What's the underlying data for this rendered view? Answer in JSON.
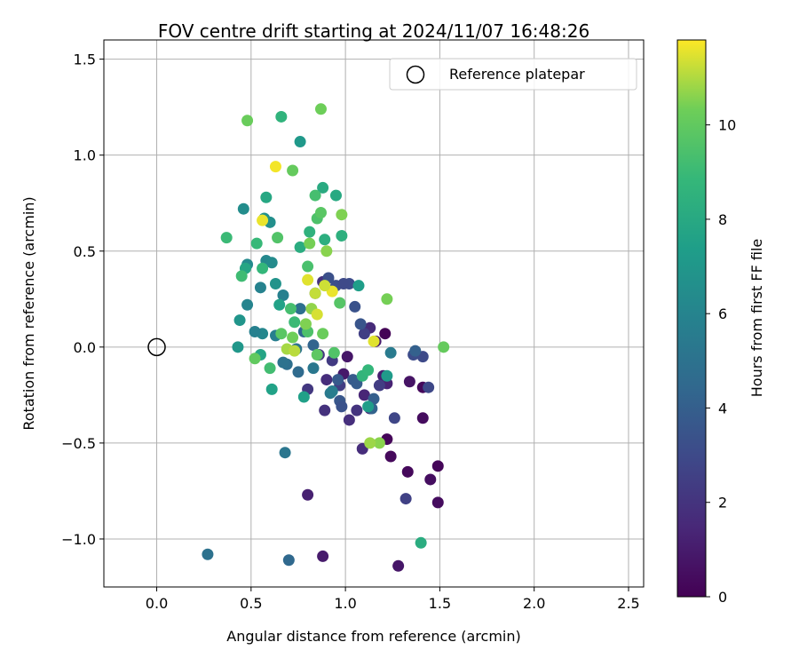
{
  "chart_data": {
    "type": "scatter",
    "title": "FOV centre drift starting at 2024/11/07 16:48:26",
    "xlabel": "Angular distance from reference (arcmin)",
    "ylabel": "Rotation from reference (arcmin)",
    "xlim": [
      -0.28,
      2.58
    ],
    "ylim": [
      -1.25,
      1.6
    ],
    "xticks": [
      0.0,
      0.5,
      1.0,
      1.5,
      2.0,
      2.5
    ],
    "xtick_labels": [
      "0.0",
      "0.5",
      "1.0",
      "1.5",
      "2.0",
      "2.5"
    ],
    "yticks": [
      1.5,
      1.0,
      0.5,
      0.0,
      -0.5,
      -1.0
    ],
    "ytick_labels": [
      "1.5",
      "1.0",
      "0.5",
      "0.0",
      "−0.5",
      "−1.0"
    ],
    "grid": true,
    "legend": {
      "location": "top-right",
      "entries": [
        {
          "label": "Reference platepar",
          "marker": "open-circle",
          "x": 0.0,
          "y": 0.0
        }
      ]
    },
    "colorbar": {
      "label": "Hours from first FF file",
      "colormap": "viridis",
      "range": [
        0,
        11.8
      ],
      "ticks": [
        0,
        2,
        4,
        6,
        8,
        10
      ],
      "tick_labels": [
        "0",
        "2",
        "4",
        "6",
        "8",
        "10"
      ]
    },
    "points": [
      {
        "x": 1.21,
        "y": 0.07,
        "t": 0.1
      },
      {
        "x": 1.22,
        "y": -0.48,
        "t": 0.2
      },
      {
        "x": 1.24,
        "y": -0.57,
        "t": 0.3
      },
      {
        "x": 1.49,
        "y": -0.62,
        "t": 0.2
      },
      {
        "x": 1.49,
        "y": -0.81,
        "t": 0.4
      },
      {
        "x": 1.33,
        "y": -0.65,
        "t": 0.3
      },
      {
        "x": 1.45,
        "y": -0.69,
        "t": 0.5
      },
      {
        "x": 1.41,
        "y": -0.21,
        "t": 0.3
      },
      {
        "x": 1.41,
        "y": -0.37,
        "t": 0.4
      },
      {
        "x": 1.28,
        "y": -1.14,
        "t": 0.8
      },
      {
        "x": 0.88,
        "y": -1.09,
        "t": 1.0
      },
      {
        "x": 0.8,
        "y": -0.77,
        "t": 1.2
      },
      {
        "x": 1.34,
        "y": -0.18,
        "t": 0.7
      },
      {
        "x": 1.01,
        "y": -0.05,
        "t": 0.8
      },
      {
        "x": 0.99,
        "y": -0.14,
        "t": 0.9
      },
      {
        "x": 1.2,
        "y": -0.15,
        "t": 1.1
      },
      {
        "x": 1.22,
        "y": -0.19,
        "t": 1.3
      },
      {
        "x": 1.1,
        "y": -0.25,
        "t": 1.4
      },
      {
        "x": 1.16,
        "y": 0.03,
        "t": 1.0
      },
      {
        "x": 1.13,
        "y": 0.1,
        "t": 1.6
      },
      {
        "x": 1.09,
        "y": -0.53,
        "t": 1.7
      },
      {
        "x": 1.13,
        "y": -0.32,
        "t": 1.5
      },
      {
        "x": 1.02,
        "y": -0.38,
        "t": 1.8
      },
      {
        "x": 1.06,
        "y": -0.33,
        "t": 2.0
      },
      {
        "x": 0.89,
        "y": -0.33,
        "t": 1.9
      },
      {
        "x": 0.9,
        "y": -0.17,
        "t": 1.7
      },
      {
        "x": 0.86,
        "y": -0.04,
        "t": 2.1
      },
      {
        "x": 0.8,
        "y": -0.22,
        "t": 2.2
      },
      {
        "x": 0.93,
        "y": -0.07,
        "t": 2.3
      },
      {
        "x": 0.97,
        "y": -0.2,
        "t": 2.4
      },
      {
        "x": 0.88,
        "y": 0.34,
        "t": 1.9
      },
      {
        "x": 1.1,
        "y": 0.07,
        "t": 2.5
      },
      {
        "x": 1.18,
        "y": -0.2,
        "t": 2.4
      },
      {
        "x": 1.26,
        "y": -0.37,
        "t": 2.8
      },
      {
        "x": 1.32,
        "y": -0.79,
        "t": 2.6
      },
      {
        "x": 1.44,
        "y": -0.21,
        "t": 2.9
      },
      {
        "x": 1.41,
        "y": -0.05,
        "t": 3.0
      },
      {
        "x": 1.36,
        "y": -0.04,
        "t": 3.1
      },
      {
        "x": 0.95,
        "y": 0.32,
        "t": 3.2
      },
      {
        "x": 1.02,
        "y": 0.33,
        "t": 3.1
      },
      {
        "x": 0.91,
        "y": 0.36,
        "t": 3.3
      },
      {
        "x": 0.99,
        "y": 0.33,
        "t": 3.0
      },
      {
        "x": 1.05,
        "y": 0.21,
        "t": 3.4
      },
      {
        "x": 1.08,
        "y": 0.12,
        "t": 3.5
      },
      {
        "x": 0.84,
        "y": 0.28,
        "t": 3.6
      },
      {
        "x": 0.96,
        "y": -0.17,
        "t": 3.7
      },
      {
        "x": 0.97,
        "y": -0.28,
        "t": 3.6
      },
      {
        "x": 0.98,
        "y": -0.31,
        "t": 3.4
      },
      {
        "x": 1.04,
        "y": -0.17,
        "t": 3.8
      },
      {
        "x": 1.06,
        "y": -0.19,
        "t": 3.9
      },
      {
        "x": 1.15,
        "y": -0.27,
        "t": 4.0
      },
      {
        "x": 1.14,
        "y": -0.32,
        "t": 4.2
      },
      {
        "x": 1.37,
        "y": -0.02,
        "t": 4.1
      },
      {
        "x": 0.83,
        "y": 0.01,
        "t": 4.3
      },
      {
        "x": 0.78,
        "y": 0.08,
        "t": 4.4
      },
      {
        "x": 0.75,
        "y": -0.13,
        "t": 4.6
      },
      {
        "x": 0.69,
        "y": -0.09,
        "t": 4.8
      },
      {
        "x": 0.67,
        "y": -0.08,
        "t": 5.0
      },
      {
        "x": 0.76,
        "y": 0.2,
        "t": 4.9
      },
      {
        "x": 0.74,
        "y": -0.01,
        "t": 5.1
      },
      {
        "x": 0.68,
        "y": -0.55,
        "t": 5.2
      },
      {
        "x": 0.7,
        "y": -1.11,
        "t": 4.5
      },
      {
        "x": 0.27,
        "y": -1.08,
        "t": 5.0
      },
      {
        "x": 0.83,
        "y": -0.11,
        "t": 5.3
      },
      {
        "x": 0.92,
        "y": -0.24,
        "t": 5.4
      },
      {
        "x": 0.93,
        "y": -0.23,
        "t": 5.6
      },
      {
        "x": 1.24,
        "y": -0.03,
        "t": 5.5
      },
      {
        "x": 0.63,
        "y": 0.06,
        "t": 5.7
      },
      {
        "x": 0.67,
        "y": 0.27,
        "t": 5.8
      },
      {
        "x": 0.55,
        "y": 0.31,
        "t": 5.9
      },
      {
        "x": 0.48,
        "y": 0.22,
        "t": 6.0
      },
      {
        "x": 0.56,
        "y": 0.07,
        "t": 6.1
      },
      {
        "x": 0.52,
        "y": 0.08,
        "t": 5.8
      },
      {
        "x": 0.58,
        "y": 0.45,
        "t": 6.2
      },
      {
        "x": 0.48,
        "y": 0.43,
        "t": 6.3
      },
      {
        "x": 0.61,
        "y": 0.44,
        "t": 6.4
      },
      {
        "x": 0.46,
        "y": 0.72,
        "t": 6.5
      },
      {
        "x": 0.6,
        "y": 0.65,
        "t": 6.6
      },
      {
        "x": 0.57,
        "y": 0.67,
        "t": 6.7
      },
      {
        "x": 0.63,
        "y": 0.33,
        "t": 6.8
      },
      {
        "x": 0.44,
        "y": 0.14,
        "t": 6.9
      },
      {
        "x": 0.43,
        "y": 0.0,
        "t": 7.0
      },
      {
        "x": 0.76,
        "y": 1.07,
        "t": 7.1
      },
      {
        "x": 1.22,
        "y": -0.15,
        "t": 7.2
      },
      {
        "x": 1.12,
        "y": -0.31,
        "t": 7.3
      },
      {
        "x": 1.07,
        "y": 0.32,
        "t": 7.4
      },
      {
        "x": 0.78,
        "y": -0.26,
        "t": 7.5
      },
      {
        "x": 0.61,
        "y": -0.22,
        "t": 7.6
      },
      {
        "x": 0.55,
        "y": -0.04,
        "t": 7.7
      },
      {
        "x": 0.47,
        "y": 0.41,
        "t": 7.8
      },
      {
        "x": 0.65,
        "y": 0.22,
        "t": 7.6
      },
      {
        "x": 0.58,
        "y": 0.78,
        "t": 7.9
      },
      {
        "x": 0.95,
        "y": 0.79,
        "t": 8.0
      },
      {
        "x": 0.88,
        "y": 0.83,
        "t": 8.1
      },
      {
        "x": 0.76,
        "y": 0.52,
        "t": 8.2
      },
      {
        "x": 0.89,
        "y": 0.56,
        "t": 8.3
      },
      {
        "x": 0.98,
        "y": 0.58,
        "t": 8.4
      },
      {
        "x": 0.81,
        "y": 0.6,
        "t": 8.5
      },
      {
        "x": 0.66,
        "y": 1.2,
        "t": 8.6
      },
      {
        "x": 1.4,
        "y": -1.02,
        "t": 8.2
      },
      {
        "x": 1.09,
        "y": -0.15,
        "t": 8.7
      },
      {
        "x": 1.12,
        "y": -0.12,
        "t": 8.8
      },
      {
        "x": 0.53,
        "y": 0.54,
        "t": 8.9
      },
      {
        "x": 0.37,
        "y": 0.57,
        "t": 9.0
      },
      {
        "x": 0.45,
        "y": 0.37,
        "t": 9.1
      },
      {
        "x": 0.56,
        "y": 0.41,
        "t": 8.8
      },
      {
        "x": 0.6,
        "y": -0.11,
        "t": 9.2
      },
      {
        "x": 0.71,
        "y": 0.2,
        "t": 9.3
      },
      {
        "x": 0.73,
        "y": 0.13,
        "t": 9.0
      },
      {
        "x": 0.8,
        "y": 0.42,
        "t": 9.4
      },
      {
        "x": 0.85,
        "y": 0.67,
        "t": 9.5
      },
      {
        "x": 0.84,
        "y": 0.79,
        "t": 9.3
      },
      {
        "x": 0.87,
        "y": 0.7,
        "t": 9.8
      },
      {
        "x": 0.94,
        "y": -0.03,
        "t": 9.6
      },
      {
        "x": 0.85,
        "y": -0.04,
        "t": 9.9
      },
      {
        "x": 0.97,
        "y": 0.23,
        "t": 9.7
      },
      {
        "x": 0.64,
        "y": 0.57,
        "t": 9.6
      },
      {
        "x": 0.66,
        "y": 0.07,
        "t": 9.8
      },
      {
        "x": 0.8,
        "y": 0.08,
        "t": 9.5
      },
      {
        "x": 0.52,
        "y": -0.06,
        "t": 10.0
      },
      {
        "x": 0.48,
        "y": 1.18,
        "t": 10.2
      },
      {
        "x": 0.87,
        "y": 1.24,
        "t": 10.3
      },
      {
        "x": 0.72,
        "y": 0.92,
        "t": 10.1
      },
      {
        "x": 0.98,
        "y": 0.69,
        "t": 10.5
      },
      {
        "x": 0.81,
        "y": 0.54,
        "t": 10.4
      },
      {
        "x": 0.9,
        "y": 0.5,
        "t": 10.6
      },
      {
        "x": 0.72,
        "y": 0.05,
        "t": 10.3
      },
      {
        "x": 0.82,
        "y": 0.2,
        "t": 10.7
      },
      {
        "x": 0.79,
        "y": 0.12,
        "t": 10.5
      },
      {
        "x": 0.88,
        "y": 0.07,
        "t": 10.2
      },
      {
        "x": 1.22,
        "y": 0.25,
        "t": 10.4
      },
      {
        "x": 1.52,
        "y": 0.0,
        "t": 10.1
      },
      {
        "x": 1.18,
        "y": -0.5,
        "t": 10.6
      },
      {
        "x": 1.13,
        "y": -0.5,
        "t": 10.8
      },
      {
        "x": 0.69,
        "y": -0.01,
        "t": 10.9
      },
      {
        "x": 0.63,
        "y": 0.94,
        "t": 11.7
      },
      {
        "x": 0.56,
        "y": 0.66,
        "t": 11.6
      },
      {
        "x": 0.8,
        "y": 0.35,
        "t": 11.5
      },
      {
        "x": 0.85,
        "y": 0.17,
        "t": 11.4
      },
      {
        "x": 0.93,
        "y": 0.29,
        "t": 11.6
      },
      {
        "x": 0.89,
        "y": 0.32,
        "t": 11.3
      },
      {
        "x": 1.15,
        "y": 0.03,
        "t": 11.5
      },
      {
        "x": 0.84,
        "y": 0.28,
        "t": 11.2
      },
      {
        "x": 0.73,
        "y": -0.02,
        "t": 11.1
      }
    ]
  }
}
